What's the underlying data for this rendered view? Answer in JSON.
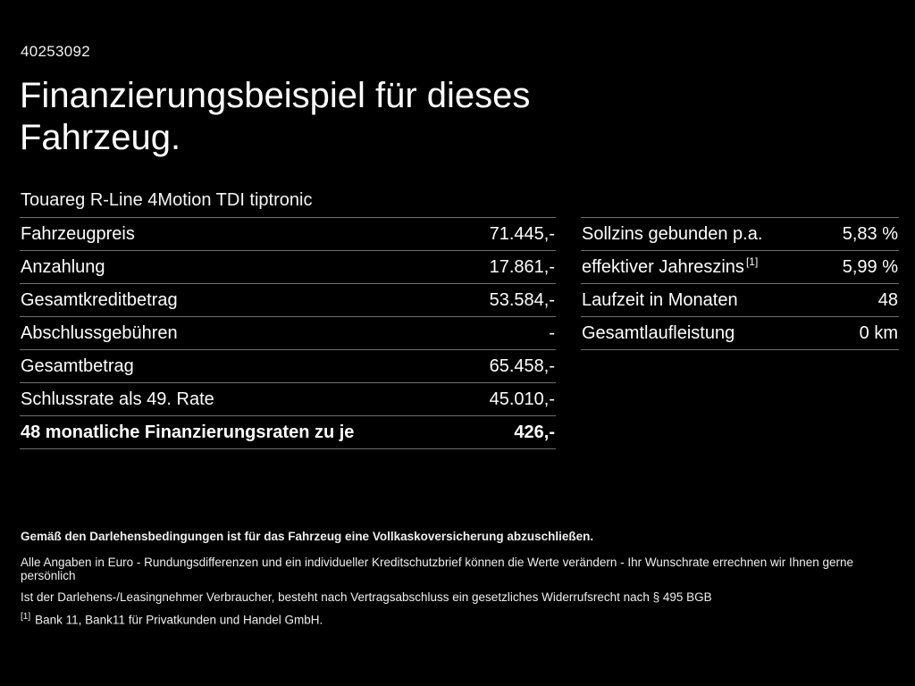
{
  "page": {
    "vehicle_id": "40253092",
    "title": "Finanzierungsbeispiel für dieses Fahrzeug.",
    "subtitle": "Touareg R-Line 4Motion TDI tiptronic"
  },
  "finance_left": {
    "rows": [
      {
        "label": "Fahrzeugpreis",
        "value": "71.445,-"
      },
      {
        "label": "Anzahlung",
        "value": "17.861,-"
      },
      {
        "label": "Gesamtkreditbetrag",
        "value": "53.584,-"
      },
      {
        "label": "Abschlussgebühren",
        "value": "-"
      },
      {
        "label": "Gesamtbetrag",
        "value": "65.458,-"
      },
      {
        "label": "Schlussrate als 49. Rate",
        "value": "45.010,-"
      },
      {
        "label": "48 monatliche Finanzierungsraten zu je",
        "value": "426,-"
      }
    ]
  },
  "finance_right": {
    "rows": [
      {
        "label": "Sollzins gebunden p.a.",
        "value": "5,83 %"
      },
      {
        "label": "effektiver Jahreszins",
        "sup": "[1]",
        "value": "5,99 %"
      },
      {
        "label": "Laufzeit in Monaten",
        "value": "48"
      },
      {
        "label": "Gesamtlaufleistung",
        "value": "0 km"
      }
    ]
  },
  "footer": {
    "insurance_note": "Gemäß den Darlehensbedingungen ist für das Fahrzeug eine Vollkaskoversicherung abzuschließen.",
    "disclaimer_1": "Alle Angaben in Euro - Rundungsdifferenzen und ein individueller Kreditschutzbrief können die Werte verändern - Ihr Wunschrate errechnen wir Ihnen gerne persönlich",
    "disclaimer_2": "Ist der Darlehens-/Leasingnehmer Verbraucher, besteht nach Vertragsabschluss ein gesetzliches Widerrufsrecht nach § 495 BGB",
    "footnote_marker": "[1]",
    "footnote_text": "Bank 11, Bank11 für Privatkunden und Handel GmbH."
  }
}
